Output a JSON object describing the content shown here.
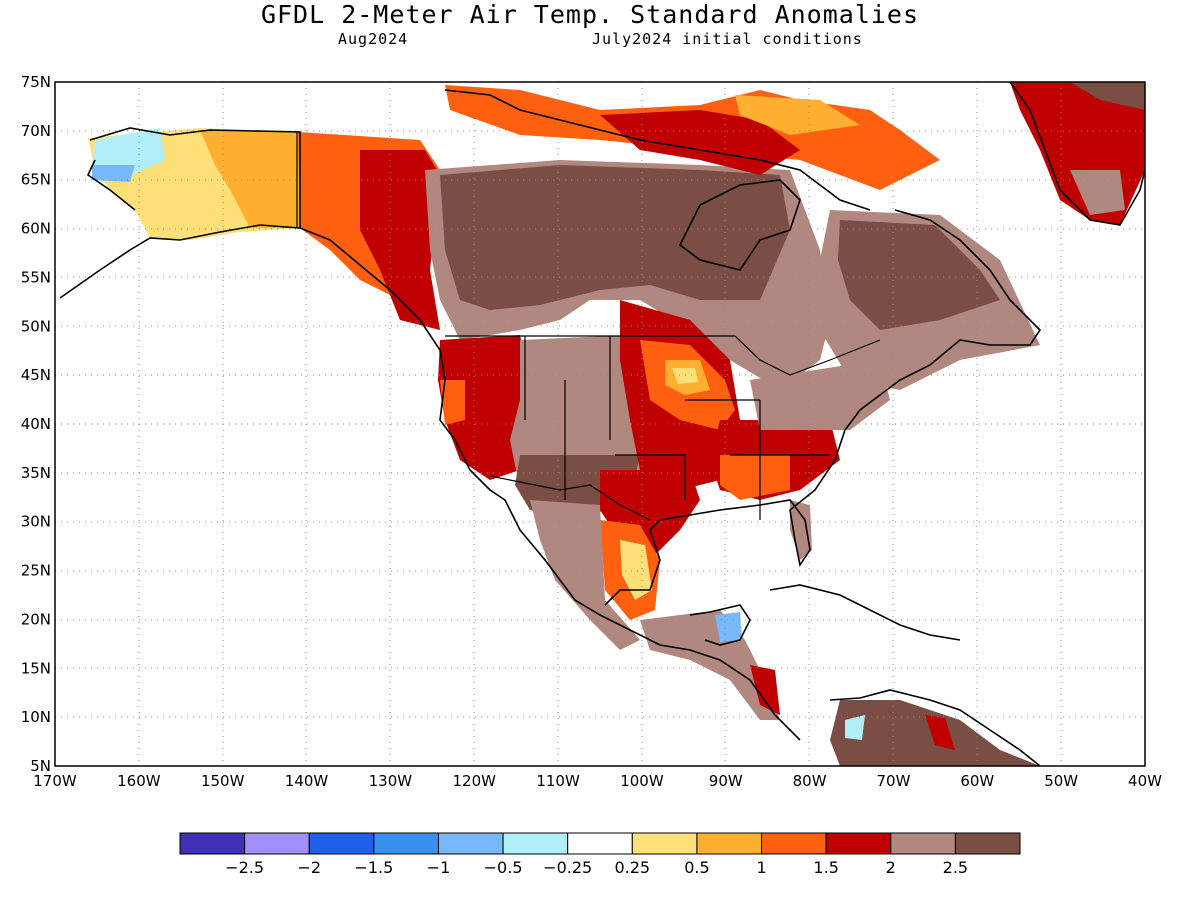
{
  "header": {
    "title": "GFDL 2-Meter Air Temp. Standard Anomalies",
    "forecast_month": "Aug2024",
    "initial_conditions": "July2024 initial conditions"
  },
  "map": {
    "lat_labels": [
      "75N",
      "70N",
      "65N",
      "60N",
      "55N",
      "50N",
      "45N",
      "40N",
      "35N",
      "30N",
      "25N",
      "20N",
      "15N",
      "10N",
      "5N"
    ],
    "lon_labels": [
      "170W",
      "160W",
      "150W",
      "140W",
      "130W",
      "120W",
      "110W",
      "100W",
      "90W",
      "80W",
      "70W",
      "60W",
      "50W",
      "40W"
    ],
    "lat_range": [
      5,
      75
    ],
    "lon_range": [
      -170,
      -40
    ],
    "grid": "dotted",
    "regions": [
      {
        "name": "alaska-west",
        "level": "0.25-0.5"
      },
      {
        "name": "alaska-northwest",
        "level": "-0.5--0.25"
      },
      {
        "name": "yukon",
        "level": "1-1.5"
      },
      {
        "name": "bc-coast",
        "level": "1.5-2"
      },
      {
        "name": "canada-interior",
        "level": "2-2.5"
      },
      {
        "name": "canada-interior-core",
        "level": ">2.5"
      },
      {
        "name": "arctic-islands",
        "level": "1-1.5"
      },
      {
        "name": "us-west",
        "level": "1.5-2"
      },
      {
        "name": "us-southwest",
        "level": "2-2.5"
      },
      {
        "name": "us-midwest",
        "level": "1-1.5"
      },
      {
        "name": "us-southeast",
        "level": "1.5-2"
      },
      {
        "name": "mexico-east",
        "level": "0.25-0.5"
      },
      {
        "name": "greenland",
        "level": "1.5-2"
      },
      {
        "name": "eastern-canada",
        "level": ">2.5"
      },
      {
        "name": "south-america-north",
        "level": ">2.5"
      }
    ]
  },
  "colorbar": {
    "colors": [
      "#4030b8",
      "#a090f8",
      "#2060e8",
      "#3890f0",
      "#78b8f8",
      "#b0eef8",
      "#ffffff",
      "#ffe078",
      "#ffb030",
      "#ff6010",
      "#c00000",
      "#b08880",
      "#7a4e44"
    ],
    "labels": [
      "-2.5",
      "-2",
      "-1.5",
      "-1",
      "-0.5",
      "-0.25",
      "0.25",
      "0.5",
      "1",
      "1.5",
      "2",
      "2.5"
    ]
  }
}
